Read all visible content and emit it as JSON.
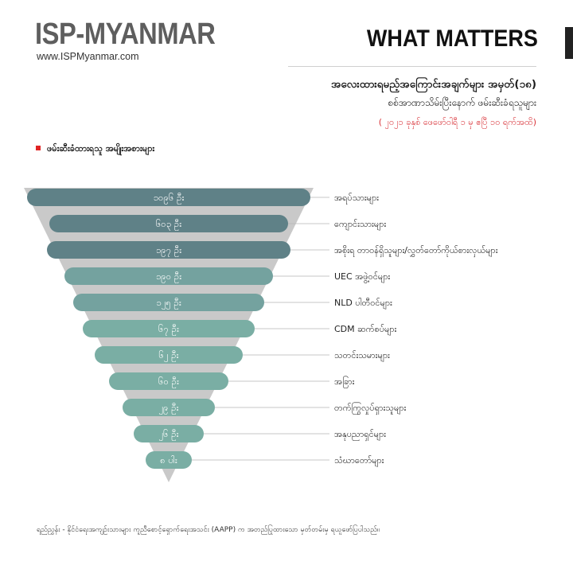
{
  "header": {
    "brand": "ISP-MYANMAR",
    "website": "www.ISPMyanmar.com",
    "section": "WHAT MATTERS"
  },
  "chart_data": {
    "type": "bar",
    "title": "အလေးထားရမည့်အကြောင်းအချက်များ အမှတ်(၁၈)",
    "subtitle": "စစ်အာဏာသိမ်းပြီးနောက် ဖမ်းဆီးခံရသူများ",
    "date_range": "( ၂၀၂၁ ခုနှစ် ဖေဖော်ဝါရီ ၁ မှ ဧပြီ ၁၀ ရက်အထိ)",
    "legend_label": "ဖမ်းဆီးခံထားရသူ အမျိုးအစားများ",
    "categories": [
      "အရပ်သားများ",
      "ကျောင်းသားများ",
      "အစိုးရ တာဝန်ရှိသူများ/လွှတ်တော်ကိုယ်စားလှယ်များ",
      "UEC အဖွဲ့ဝင်များ",
      "NLD ပါတီဝင်များ",
      "CDM ဆက်စပ်များ",
      "သတင်းသမားများ",
      "အခြား",
      "တက်ကြွလှုပ်ရှားသူများ",
      "အနုပညာရှင်များ",
      "သံဃာတော်များ"
    ],
    "values": [
      1096,
      603,
      197,
      190,
      125,
      67,
      62,
      60,
      29,
      26,
      8
    ],
    "value_labels": [
      "၁၀၉၆ ဦး",
      "၆၀၃ ဦး",
      "၁၉၇ ဦး",
      "၁၉၀ ဦး",
      "၁၂၅ ဦး",
      "၆၇ ဦး",
      "၆၂ ဦး",
      "၆၀ ဦး",
      "၂၉ ဦး",
      "၂၆ ဦး",
      "၈ ပါး"
    ],
    "colors": {
      "dark": "#5f8187",
      "mid": "#74a29f",
      "light": "#7aaea4",
      "funnel": "#c9c9c9",
      "accent": "#e02424",
      "date": "#d9343a"
    }
  },
  "footer": {
    "source": "ရည်ညွှန်း - နိုင်ငံရေးအကျဉ်းသားများ ကူညီစောင့်ရှောက်ရေးအသင်း (AAPP) က အတည်ပြုထားသော မှတ်တမ်းမှ ရယူဖော်ပြပါသည်။"
  }
}
